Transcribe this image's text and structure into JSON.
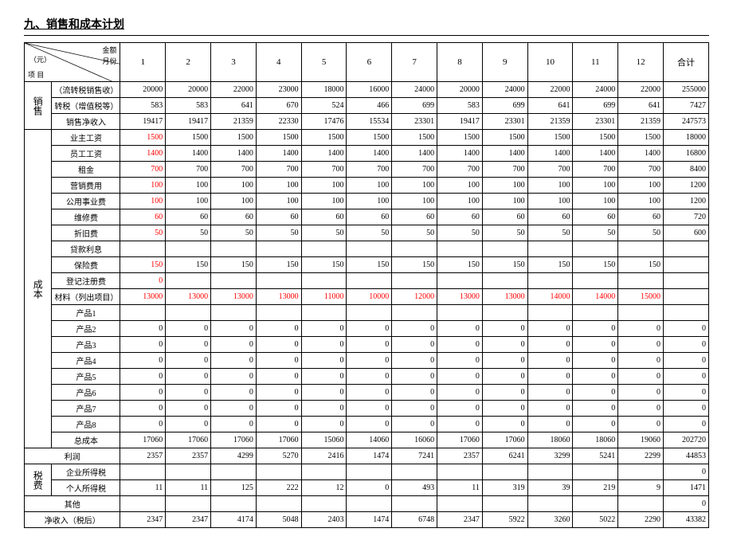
{
  "title": "九、销售和成本计划",
  "header": {
    "diag": {
      "top": "金额",
      "mid_left": "（元）",
      "mid_right": "月份",
      "bottom": "项   目"
    },
    "months": [
      "1",
      "2",
      "3",
      "4",
      "5",
      "6",
      "7",
      "8",
      "9",
      "10",
      "11",
      "12",
      "合计"
    ]
  },
  "sections": [
    {
      "group": "销售",
      "rows": [
        {
          "label": "（流转税销售收）",
          "red": false,
          "vals": [
            "20000",
            "20000",
            "22000",
            "23000",
            "18000",
            "16000",
            "24000",
            "20000",
            "24000",
            "22000",
            "24000",
            "22000",
            "255000"
          ]
        },
        {
          "label": "转税（增值税等）",
          "red": false,
          "vals": [
            "583",
            "583",
            "641",
            "670",
            "524",
            "466",
            "699",
            "583",
            "699",
            "641",
            "699",
            "641",
            "7427"
          ]
        },
        {
          "label": "销售净收入",
          "red": false,
          "vals": [
            "19417",
            "19417",
            "21359",
            "22330",
            "17476",
            "15534",
            "23301",
            "19417",
            "23301",
            "21359",
            "23301",
            "21359",
            "247573"
          ]
        }
      ]
    },
    {
      "group": "成本",
      "rows": [
        {
          "label": "业主工资",
          "red_first": true,
          "vals": [
            "1500",
            "1500",
            "1500",
            "1500",
            "1500",
            "1500",
            "1500",
            "1500",
            "1500",
            "1500",
            "1500",
            "1500",
            "18000"
          ]
        },
        {
          "label": "员工工资",
          "red_first": true,
          "vals": [
            "1400",
            "1400",
            "1400",
            "1400",
            "1400",
            "1400",
            "1400",
            "1400",
            "1400",
            "1400",
            "1400",
            "1400",
            "16800"
          ]
        },
        {
          "label": "租金",
          "red_first": true,
          "vals": [
            "700",
            "700",
            "700",
            "700",
            "700",
            "700",
            "700",
            "700",
            "700",
            "700",
            "700",
            "700",
            "8400"
          ]
        },
        {
          "label": "营销费用",
          "red_first": true,
          "vals": [
            "100",
            "100",
            "100",
            "100",
            "100",
            "100",
            "100",
            "100",
            "100",
            "100",
            "100",
            "100",
            "1200"
          ]
        },
        {
          "label": "公用事业费",
          "red_first": true,
          "vals": [
            "100",
            "100",
            "100",
            "100",
            "100",
            "100",
            "100",
            "100",
            "100",
            "100",
            "100",
            "100",
            "1200"
          ]
        },
        {
          "label": "维修费",
          "red_first": true,
          "vals": [
            "60",
            "60",
            "60",
            "60",
            "60",
            "60",
            "60",
            "60",
            "60",
            "60",
            "60",
            "60",
            "720"
          ]
        },
        {
          "label": "折旧费",
          "red_first": true,
          "vals": [
            "50",
            "50",
            "50",
            "50",
            "50",
            "50",
            "50",
            "50",
            "50",
            "50",
            "50",
            "50",
            "600"
          ]
        },
        {
          "label": "贷款利息",
          "red_first": false,
          "vals": [
            "",
            "",
            "",
            "",
            "",
            "",
            "",
            "",
            "",
            "",
            "",
            "",
            ""
          ]
        },
        {
          "label": "保险费",
          "red_first": true,
          "vals": [
            "150",
            "150",
            "150",
            "150",
            "150",
            "150",
            "150",
            "150",
            "150",
            "150",
            "150",
            "150",
            ""
          ]
        },
        {
          "label": "登记注册费",
          "red_first": true,
          "vals": [
            "0",
            "",
            "",
            "",
            "",
            "",
            "",
            "",
            "",
            "",
            "",
            "",
            ""
          ]
        },
        {
          "label": "材料（列出项目）",
          "red_all": true,
          "vals": [
            "13000",
            "13000",
            "13000",
            "13000",
            "11000",
            "10000",
            "12000",
            "13000",
            "13000",
            "14000",
            "14000",
            "15000",
            ""
          ]
        },
        {
          "label": "产品1",
          "vals": [
            "",
            "",
            "",
            "",
            "",
            "",
            "",
            "",
            "",
            "",
            "",
            "",
            ""
          ]
        },
        {
          "label": "产品2",
          "vals": [
            "0",
            "0",
            "0",
            "0",
            "0",
            "0",
            "0",
            "0",
            "0",
            "0",
            "0",
            "0",
            "0"
          ]
        },
        {
          "label": "产品3",
          "vals": [
            "0",
            "0",
            "0",
            "0",
            "0",
            "0",
            "0",
            "0",
            "0",
            "0",
            "0",
            "0",
            "0"
          ]
        },
        {
          "label": "产品4",
          "vals": [
            "0",
            "0",
            "0",
            "0",
            "0",
            "0",
            "0",
            "0",
            "0",
            "0",
            "0",
            "0",
            "0"
          ]
        },
        {
          "label": "产品5",
          "vals": [
            "0",
            "0",
            "0",
            "0",
            "0",
            "0",
            "0",
            "0",
            "0",
            "0",
            "0",
            "0",
            "0"
          ]
        },
        {
          "label": "产品6",
          "vals": [
            "0",
            "0",
            "0",
            "0",
            "0",
            "0",
            "0",
            "0",
            "0",
            "0",
            "0",
            "0",
            "0"
          ]
        },
        {
          "label": "产品7",
          "vals": [
            "0",
            "0",
            "0",
            "0",
            "0",
            "0",
            "0",
            "0",
            "0",
            "0",
            "0",
            "0",
            "0"
          ]
        },
        {
          "label": "产品8",
          "vals": [
            "0",
            "0",
            "0",
            "0",
            "0",
            "0",
            "0",
            "0",
            "0",
            "0",
            "0",
            "0",
            "0"
          ]
        },
        {
          "label": "总成本",
          "vals": [
            "17060",
            "17060",
            "17060",
            "17060",
            "15060",
            "14060",
            "16060",
            "17060",
            "17060",
            "18060",
            "18060",
            "19060",
            "202720"
          ]
        }
      ]
    },
    {
      "group": "",
      "rows": [
        {
          "label_full": "利润",
          "vals": [
            "2357",
            "2357",
            "4299",
            "5270",
            "2416",
            "1474",
            "7241",
            "2357",
            "6241",
            "3299",
            "5241",
            "2299",
            "44853"
          ]
        }
      ]
    },
    {
      "group": "税费",
      "rows": [
        {
          "label": "企业所得税",
          "vals": [
            "",
            "",
            "",
            "",
            "",
            "",
            "",
            "",
            "",
            "",
            "",
            "",
            "0"
          ]
        },
        {
          "label": "个人所得税",
          "vals": [
            "11",
            "11",
            "125",
            "222",
            "12",
            "0",
            "493",
            "11",
            "319",
            "39",
            "219",
            "9",
            "1471"
          ]
        }
      ]
    },
    {
      "group": "",
      "rows": [
        {
          "label_full": "其他",
          "vals": [
            "",
            "",
            "",
            "",
            "",
            "",
            "",
            "",
            "",
            "",
            "",
            "",
            "0"
          ]
        },
        {
          "label_full": "净收入（税后）",
          "vals": [
            "2347",
            "2347",
            "4174",
            "5048",
            "2403",
            "1474",
            "6748",
            "2347",
            "5922",
            "3260",
            "5022",
            "2290",
            "43382"
          ]
        }
      ]
    }
  ],
  "styling": {
    "bg": "#ffffff",
    "fg": "#000000",
    "red": "#ff0000",
    "border": "#000000",
    "font_family": "SimSun",
    "base_fontsize": 10
  }
}
